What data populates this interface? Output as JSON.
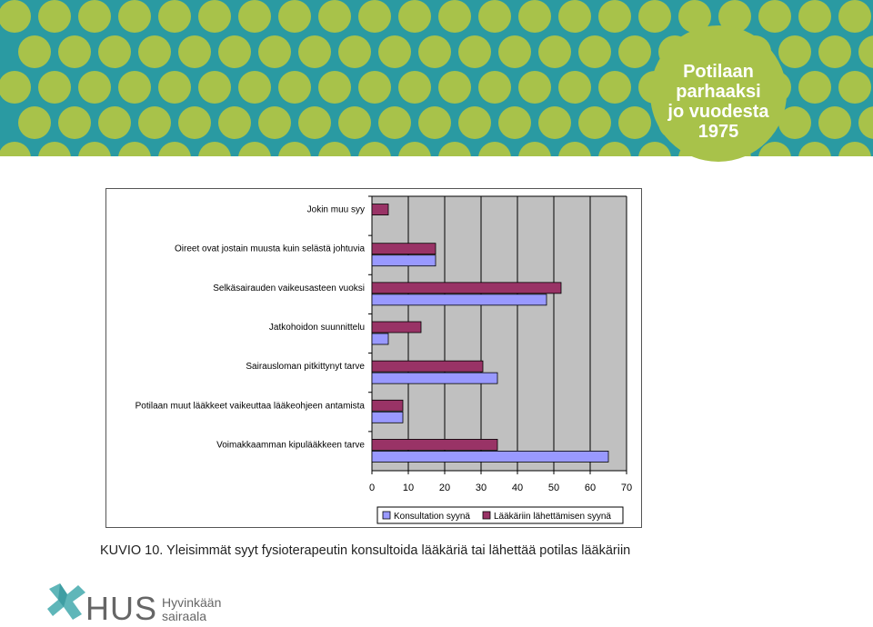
{
  "banner": {
    "badge_lines": [
      "Potilaan",
      "parhaaksi",
      "jo vuodesta",
      "1975"
    ],
    "colors": {
      "teal": "#2a9aa2",
      "dot": "#a8c24a",
      "badge": "#a8c24a"
    }
  },
  "chart_data": {
    "type": "bar",
    "orientation": "horizontal",
    "categories": [
      "Jokin muu syy",
      "Oireet ovat jostain muusta kuin selästä johtuvia",
      "Selkäsairauden vaikeusasteen vuoksi",
      "Jatkohoidon suunnittelu",
      "Sairausloman pitkittynyt tarve",
      "Potilaan muut lääkkeet vaikeuttaa lääkeohjeen antamista",
      "Voimakkaamman kipulääkkeen tarve"
    ],
    "series": [
      {
        "name": "Konsultation syynä",
        "color": "#9999ff",
        "values": [
          0,
          17.5,
          48,
          4.5,
          34.5,
          8.5,
          65
        ]
      },
      {
        "name": "Lääkäriin lähettämisen syynä",
        "color": "#993366",
        "values": [
          4.5,
          17.5,
          52,
          13.5,
          30.5,
          8.5,
          34.5
        ]
      }
    ],
    "xlim": [
      0,
      70
    ],
    "xticks": [
      "0",
      "10",
      "20",
      "30",
      "40",
      "50",
      "60",
      "70"
    ],
    "grid": true,
    "plot_background": "#c0c0c0",
    "legend": "bottom"
  },
  "caption": {
    "text": "KUVIO 10. Yleisimmät syyt fysioterapeutin konsultoida lääkäriä tai lähettää potilas lääkäriin"
  },
  "logo": {
    "abbr": "HUS",
    "name_lines": [
      "Hyvinkään",
      "sairaala"
    ]
  }
}
